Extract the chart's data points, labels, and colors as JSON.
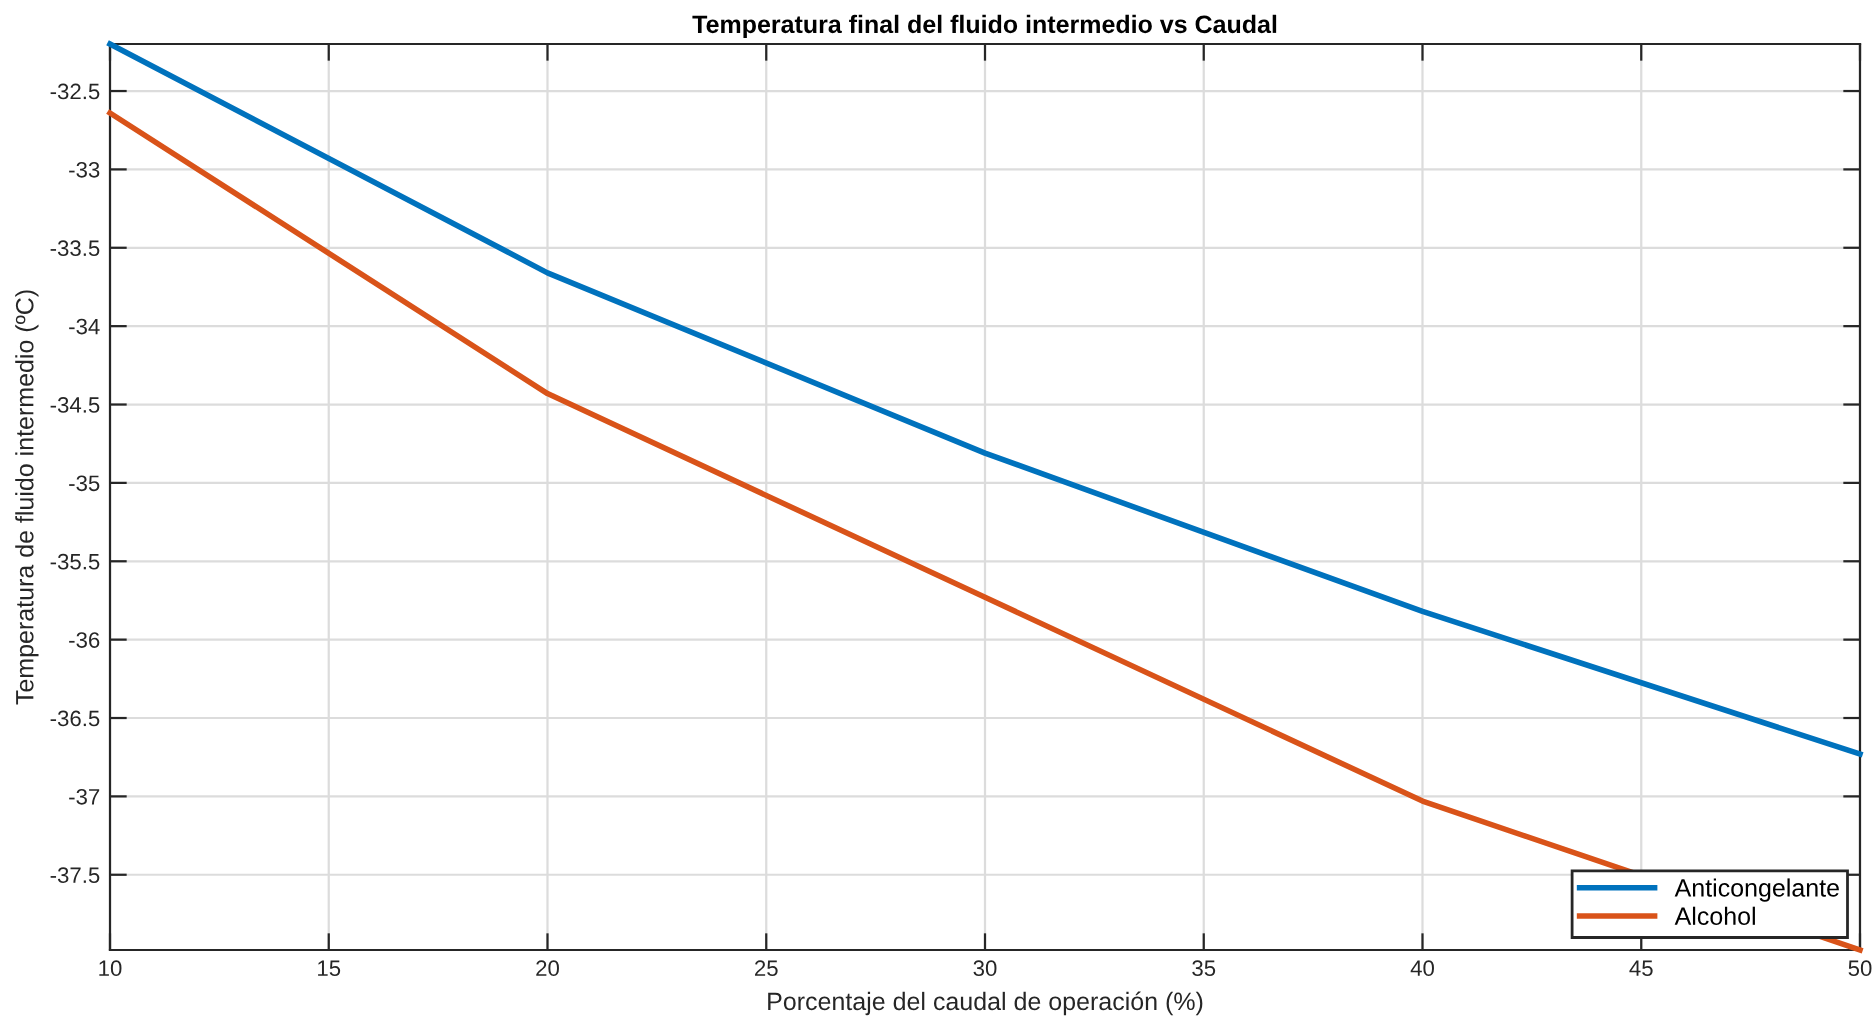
{
  "chart_data": {
    "type": "line",
    "title": "Temperatura final del fluido intermedio vs Caudal",
    "xlabel": "Porcentaje del caudal de operación (%)",
    "ylabel": "Temperatura de fluido intermedio (ºC)",
    "x": [
      10,
      20,
      30,
      40,
      50
    ],
    "series": [
      {
        "name": "Anticongelante",
        "color": "#0072bd",
        "values": [
          -32.2,
          -33.66,
          -34.81,
          -35.82,
          -36.73
        ]
      },
      {
        "name": "Alcohol",
        "color": "#d95319",
        "values": [
          -32.64,
          -34.43,
          -35.73,
          -37.03,
          -37.98
        ]
      }
    ],
    "xlim": [
      10,
      50
    ],
    "xticks": [
      10,
      15,
      20,
      25,
      30,
      35,
      40,
      45,
      50
    ],
    "ylim": [
      -37.98,
      -32.2
    ],
    "yticks": [
      -37.5,
      -37,
      -36.5,
      -36,
      -35.5,
      -35,
      -34.5,
      -34,
      -33.5,
      -33,
      -32.5
    ],
    "grid": true,
    "legend": "bottom right",
    "marker": "none",
    "line_style": "solid"
  }
}
